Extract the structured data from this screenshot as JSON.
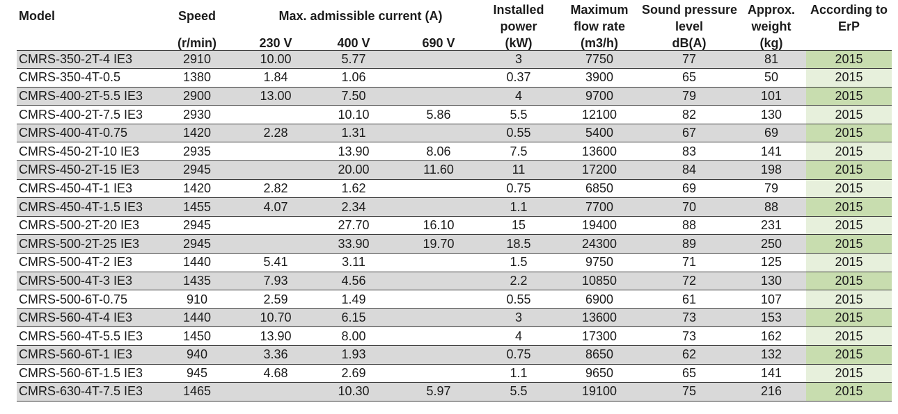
{
  "colors": {
    "row_gray": "#d9d9d9",
    "row_white": "#ffffff",
    "erp_green_dark": "#c8ddaf",
    "erp_green_light": "#e7f0dc",
    "rule_line": "#3d3d3d",
    "text": "#1c1c1c"
  },
  "header": {
    "model_label": "Model",
    "speed_label": "Speed",
    "speed_unit": "(r/min)",
    "current_group_label": "Max. admissible current (A)",
    "v230_label": "230 V",
    "v400_label": "400 V",
    "v690_label": "690 V",
    "power_label": "Installed\npower",
    "power_unit": "(kW)",
    "flow_label": "Maximum\nflow rate",
    "flow_unit": "(m3/h)",
    "sound_label": "Sound pressure\nlevel",
    "sound_unit": "dB(A)",
    "weight_label": "Approx.\nweight",
    "weight_unit": "(kg)",
    "erp_label": "According to\nErP"
  },
  "rows": [
    [
      "CMRS-350-2T-4 IE3",
      "2910",
      "10.00",
      "5.77",
      "",
      "3",
      "7750",
      "77",
      "81",
      "2015"
    ],
    [
      "CMRS-350-4T-0.5",
      "1380",
      "1.84",
      "1.06",
      "",
      "0.37",
      "3900",
      "65",
      "50",
      "2015"
    ],
    [
      "CMRS-400-2T-5.5 IE3",
      "2900",
      "13.00",
      "7.50",
      "",
      "4",
      "9700",
      "79",
      "101",
      "2015"
    ],
    [
      "CMRS-400-2T-7.5 IE3",
      "2930",
      "",
      "10.10",
      "5.86",
      "5.5",
      "12100",
      "82",
      "130",
      "2015"
    ],
    [
      "CMRS-400-4T-0.75",
      "1420",
      "2.28",
      "1.31",
      "",
      "0.55",
      "5400",
      "67",
      "69",
      "2015"
    ],
    [
      "CMRS-450-2T-10 IE3",
      "2935",
      "",
      "13.90",
      "8.06",
      "7.5",
      "13600",
      "83",
      "141",
      "2015"
    ],
    [
      "CMRS-450-2T-15 IE3",
      "2945",
      "",
      "20.00",
      "11.60",
      "11",
      "17200",
      "84",
      "198",
      "2015"
    ],
    [
      "CMRS-450-4T-1 IE3",
      "1420",
      "2.82",
      "1.62",
      "",
      "0.75",
      "6850",
      "69",
      "79",
      "2015"
    ],
    [
      "CMRS-450-4T-1.5 IE3",
      "1455",
      "4.07",
      "2.34",
      "",
      "1.1",
      "7700",
      "70",
      "88",
      "2015"
    ],
    [
      "CMRS-500-2T-20 IE3",
      "2945",
      "",
      "27.70",
      "16.10",
      "15",
      "19400",
      "88",
      "231",
      "2015"
    ],
    [
      "CMRS-500-2T-25 IE3",
      "2945",
      "",
      "33.90",
      "19.70",
      "18.5",
      "24300",
      "89",
      "250",
      "2015"
    ],
    [
      "CMRS-500-4T-2 IE3",
      "1440",
      "5.41",
      "3.11",
      "",
      "1.5",
      "9750",
      "71",
      "125",
      "2015"
    ],
    [
      "CMRS-500-4T-3 IE3",
      "1435",
      "7.93",
      "4.56",
      "",
      "2.2",
      "10850",
      "72",
      "130",
      "2015"
    ],
    [
      "CMRS-500-6T-0.75",
      "910",
      "2.59",
      "1.49",
      "",
      "0.55",
      "6900",
      "61",
      "107",
      "2015"
    ],
    [
      "CMRS-560-4T-4 IE3",
      "1440",
      "10.70",
      "6.15",
      "",
      "3",
      "13600",
      "73",
      "153",
      "2015"
    ],
    [
      "CMRS-560-4T-5.5 IE3",
      "1450",
      "13.90",
      "8.00",
      "",
      "4",
      "17300",
      "73",
      "162",
      "2015"
    ],
    [
      "CMRS-560-6T-1 IE3",
      "940",
      "3.36",
      "1.93",
      "",
      "0.75",
      "8650",
      "62",
      "132",
      "2015"
    ],
    [
      "CMRS-560-6T-1.5 IE3",
      "945",
      "4.68",
      "2.69",
      "",
      "1.1",
      "9650",
      "65",
      "141",
      "2015"
    ],
    [
      "CMRS-630-4T-7.5 IE3",
      "1465",
      "",
      "10.30",
      "5.97",
      "5.5",
      "19100",
      "75",
      "216",
      "2015"
    ]
  ]
}
